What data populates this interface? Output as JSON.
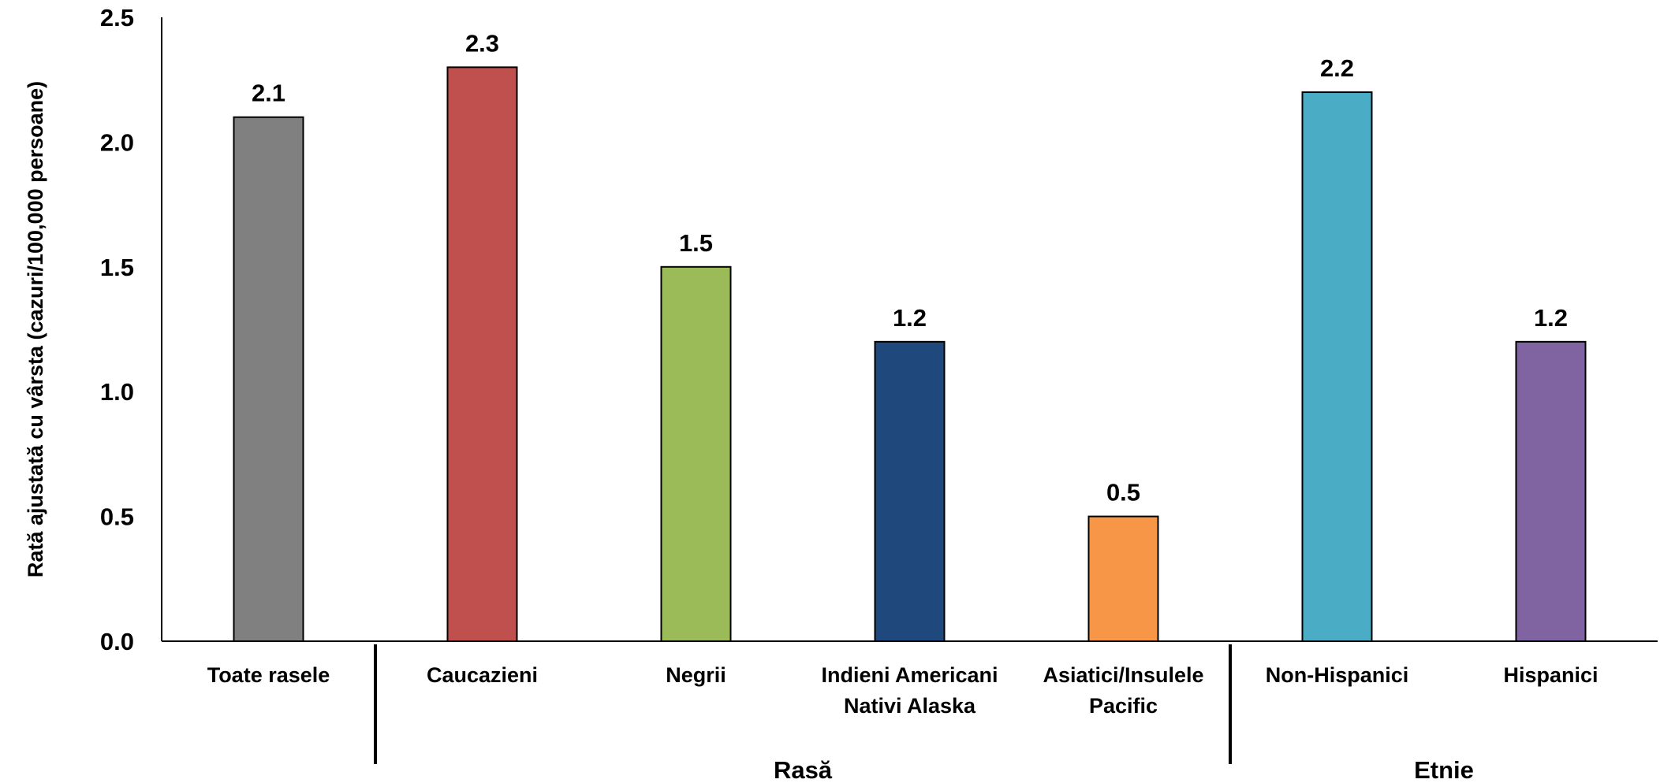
{
  "chart_data": {
    "type": "bar",
    "title": "",
    "xlabel": "",
    "ylabel": "Rată ajustată cu vârsta (cazuri/100,000 persoane)",
    "ylim": [
      0,
      2.5
    ],
    "yticks": [
      "0.0",
      "0.5",
      "1.0",
      "1.5",
      "2.0",
      "2.5"
    ],
    "grid": false,
    "categories": [
      [
        "Toate rasele"
      ],
      [
        "Caucazieni"
      ],
      [
        "Negrii"
      ],
      [
        "Indieni Americani",
        "Nativi Alaska"
      ],
      [
        "Asiatici/Insulele",
        "Pacific"
      ],
      [
        "Non-Hispanici"
      ],
      [
        "Hispanici"
      ]
    ],
    "values": [
      2.1,
      2.3,
      1.5,
      1.2,
      0.5,
      2.2,
      1.2
    ],
    "data_labels": [
      "2.1",
      "2.3",
      "1.5",
      "1.2",
      "0.5",
      "2.2",
      "1.2"
    ],
    "colors": [
      "#808080",
      "#C0504D",
      "#9BBB59",
      "#1F497D",
      "#F79646",
      "#4BACC6",
      "#8064A2"
    ],
    "groups": [
      {
        "label": "Rasă",
        "from": 1,
        "to": 4
      },
      {
        "label": "Etnie",
        "from": 5,
        "to": 6
      }
    ]
  }
}
